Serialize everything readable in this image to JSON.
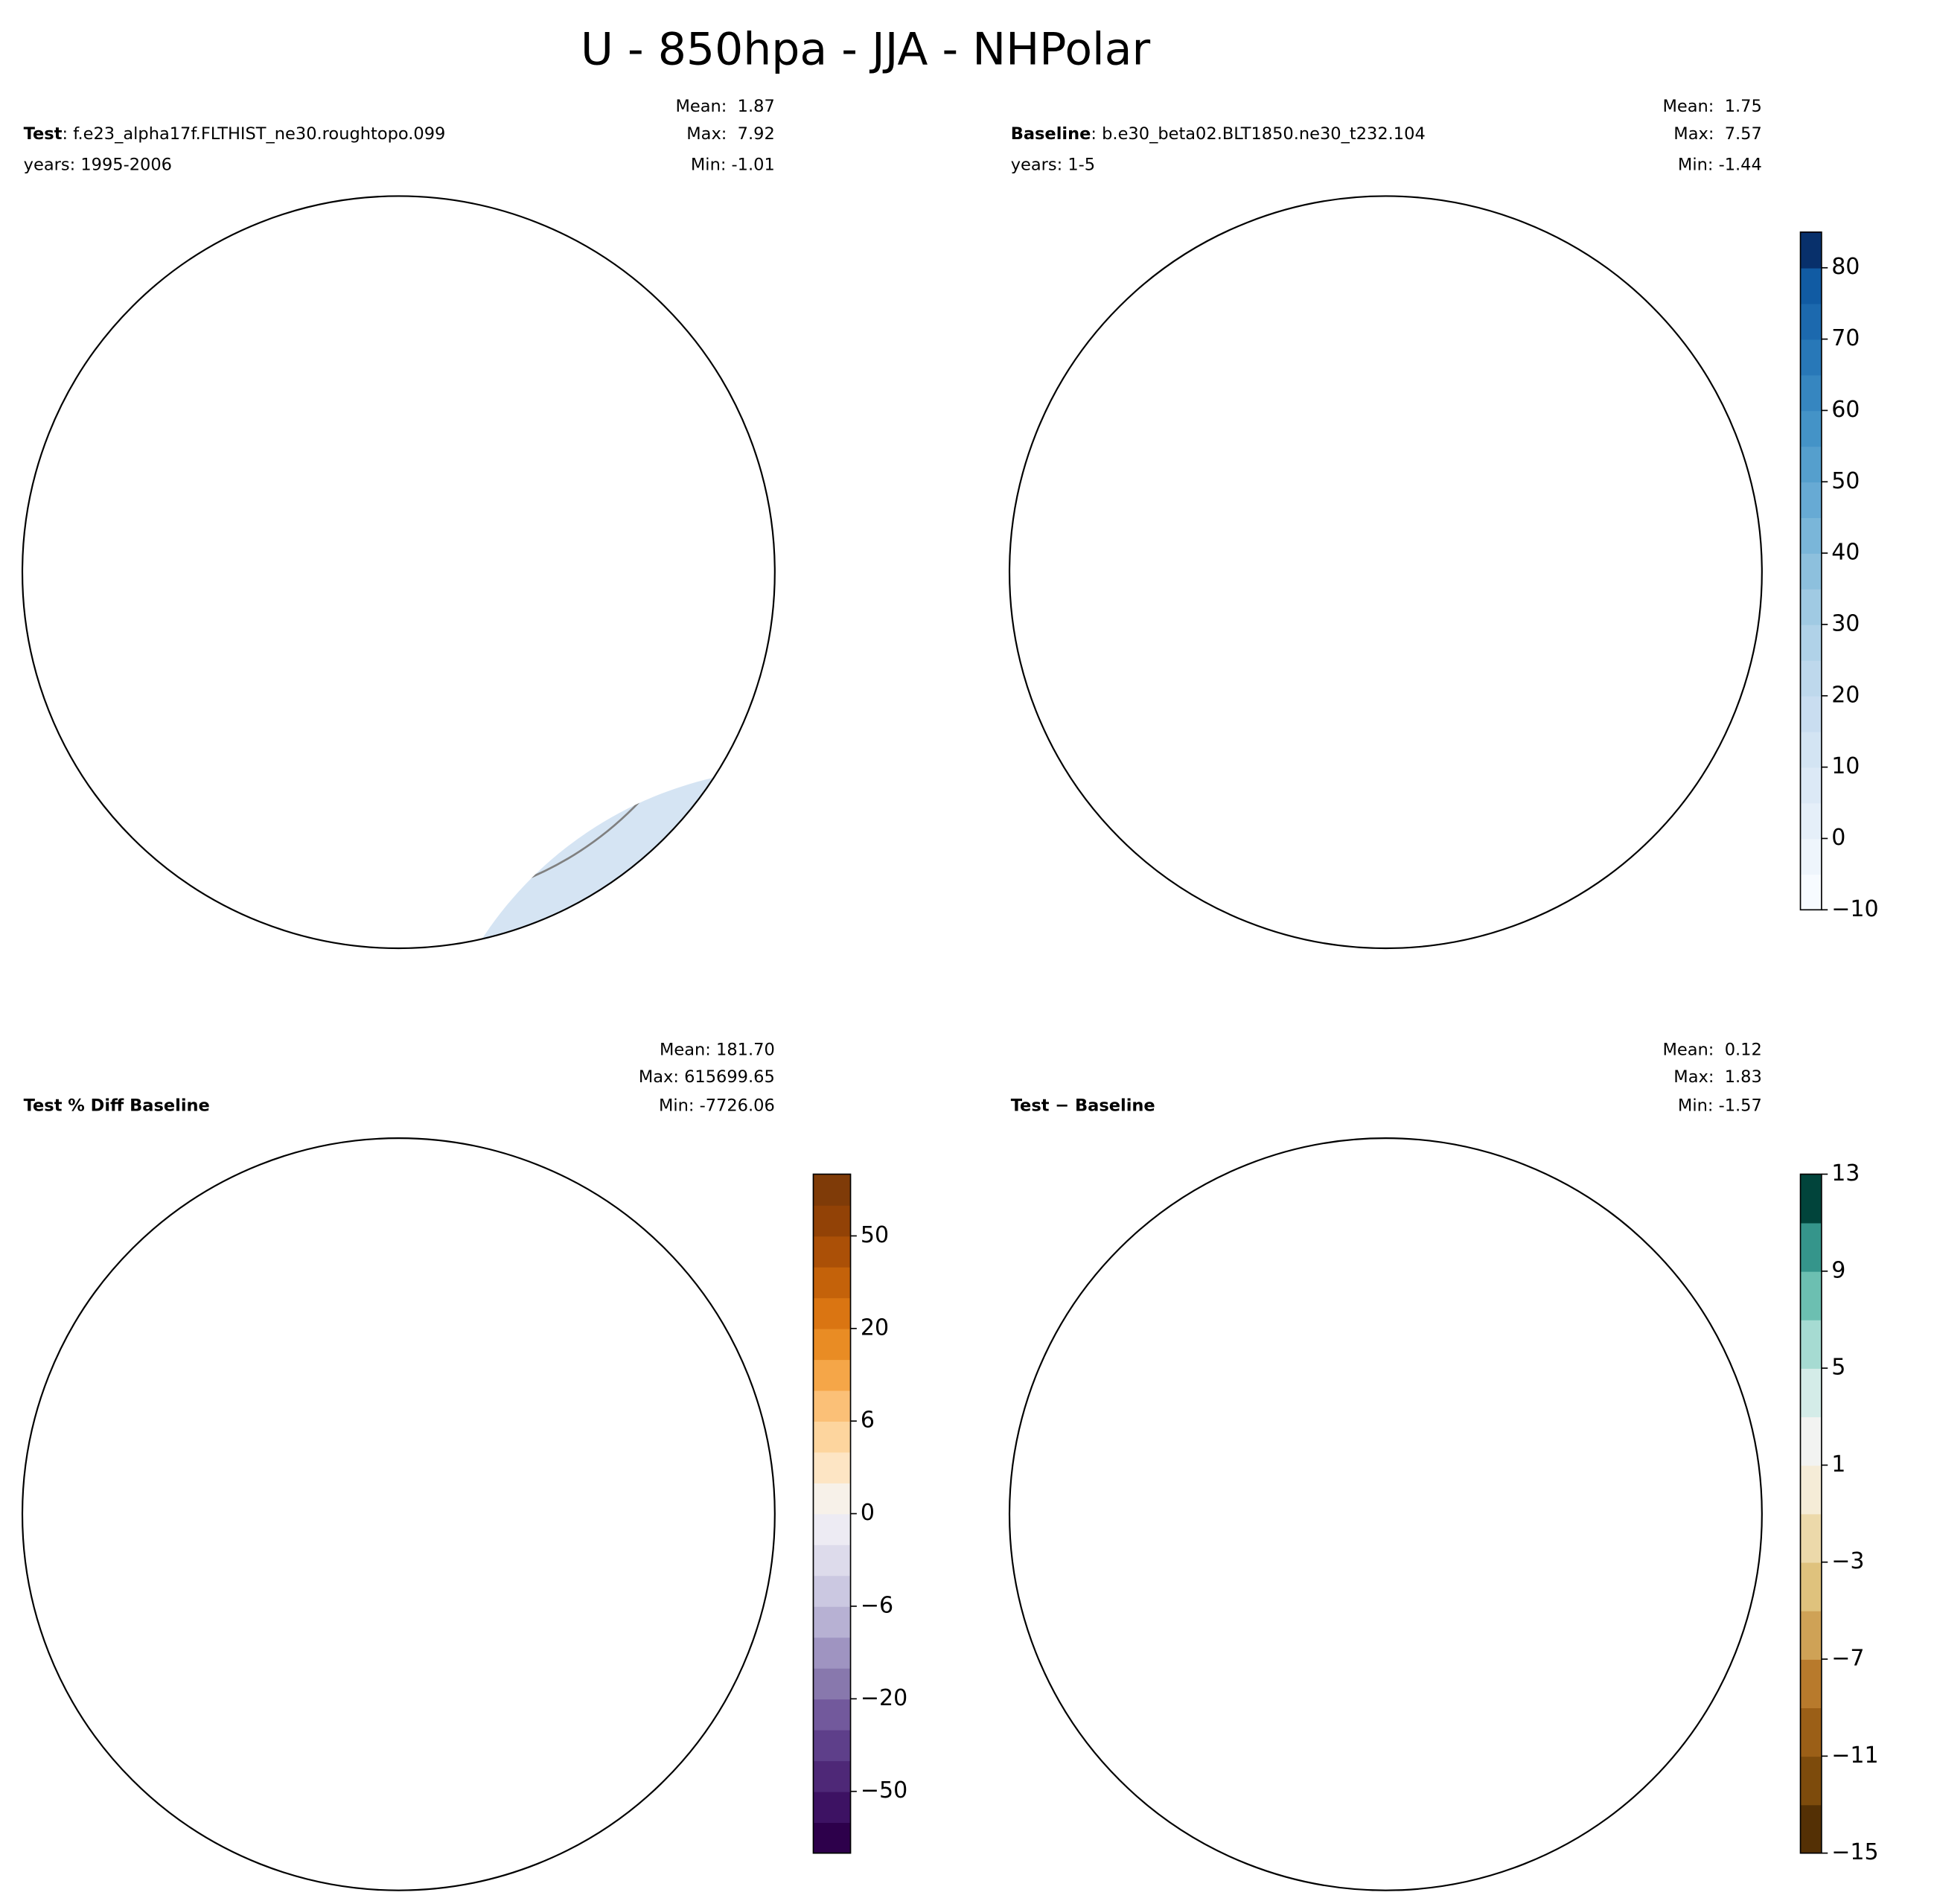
{
  "title": "U - 850hpa - JJA - NHPolar",
  "panels": [
    {
      "label": "Test",
      "name": ": f.e23_alpha17f.FLTHIST_ne30.roughtopo.099",
      "years": "years: 1995-2006",
      "stats": [
        "Mean:  1.87",
        "Max:  7.92",
        "Min: -1.01"
      ],
      "map_colors": [
        "#d5e4f3",
        "#dce9f6",
        "#ffffff"
      ]
    },
    {
      "label": "Baseline",
      "name": ": b.e30_beta02.BLT1850.ne30_t232.104",
      "years": "years: 1-5",
      "stats": [
        "Mean:  1.75",
        "Max:  7.57",
        "Min: -1.44"
      ],
      "map_colors": [
        "#d5e4f3",
        "#dce9f6",
        "#ffffff"
      ],
      "colorbar": {
        "levels": [
          -10,
          -5,
          0,
          5,
          10,
          15,
          20,
          25,
          30,
          35,
          40,
          45,
          50,
          55,
          60,
          65,
          70,
          75,
          80,
          85
        ],
        "colors": [
          "#f7fbff",
          "#eef5fc",
          "#e5eff9",
          "#dce9f6",
          "#d3e4f3",
          "#c9ddf0",
          "#bed8ec",
          "#b0d2e8",
          "#a0cae3",
          "#8dc0dd",
          "#7ab6d9",
          "#67aad4",
          "#559fcd",
          "#4493c7",
          "#3686c0",
          "#2878b8",
          "#1c69ae",
          "#115ba3",
          "#08306b"
        ],
        "ticks": [
          {
            "value": -10,
            "label": "−10"
          },
          0,
          10,
          20,
          30,
          40,
          50,
          60,
          70,
          80
        ]
      }
    },
    {
      "label": "Test % Diff Baseline",
      "stats": [
        "Mean: 181.70",
        "Max: 615699.65",
        "Min: -7726.06"
      ],
      "map_colors": [
        "#e3952f",
        "#cc7414",
        "#5e3f8a",
        "#3d1263",
        "#9f94c1",
        "#ffffff",
        "#e6e2ef"
      ],
      "colorbar": {
        "levels": [
          -70,
          -60,
          -50,
          -40,
          -30,
          -20,
          -15,
          -10,
          -6,
          -4,
          -2,
          0,
          2,
          4,
          6,
          10,
          15,
          20,
          30,
          40,
          50,
          60,
          70
        ],
        "colors": [
          "#2d004b",
          "#3d1263",
          "#4e2877",
          "#5e3f8a",
          "#72599c",
          "#8878ad",
          "#9f94c1",
          "#b7b1d3",
          "#cbc8e1",
          "#dddbeb",
          "#edebf3",
          "#f7f1e9",
          "#fde5c4",
          "#fdd59e",
          "#fbc077",
          "#f5a648",
          "#e98c24",
          "#da7512",
          "#c4620a",
          "#ab5007",
          "#924206",
          "#7f3b08"
        ],
        "ticks": [
          {
            "value": -50,
            "label": "−50"
          },
          {
            "value": -20,
            "label": "−20"
          },
          {
            "value": -6,
            "label": "−6"
          },
          0,
          6,
          20,
          50
        ]
      }
    },
    {
      "label": "Test − Baseline",
      "stats": [
        "Mean:  0.12",
        "Max:  1.83",
        "Min: -1.57"
      ],
      "map_colors": [
        "#f2f4f2",
        "#d4ece8",
        "#f5ecd7",
        "#ffffff"
      ],
      "colorbar": {
        "levels": [
          -15,
          -13,
          -11,
          -9,
          -7,
          -5,
          -3,
          -1,
          1,
          3,
          5,
          7,
          9,
          11,
          13
        ],
        "colors": [
          "#543005",
          "#7d4b0c",
          "#9b5f17",
          "#b87a2c",
          "#cfa256",
          "#dfc27d",
          "#ecd9aa",
          "#f5ecd7",
          "#f2f3f1",
          "#d4ece8",
          "#a6dbd2",
          "#6cbfb1",
          "#35958b",
          "#01443b"
        ],
        "ticks": [
          {
            "value": -15,
            "label": "−15"
          },
          {
            "value": -11,
            "label": "−11"
          },
          {
            "value": -7,
            "label": "−7"
          },
          {
            "value": -3,
            "label": "−3"
          },
          1,
          5,
          9,
          13
        ]
      }
    }
  ]
}
